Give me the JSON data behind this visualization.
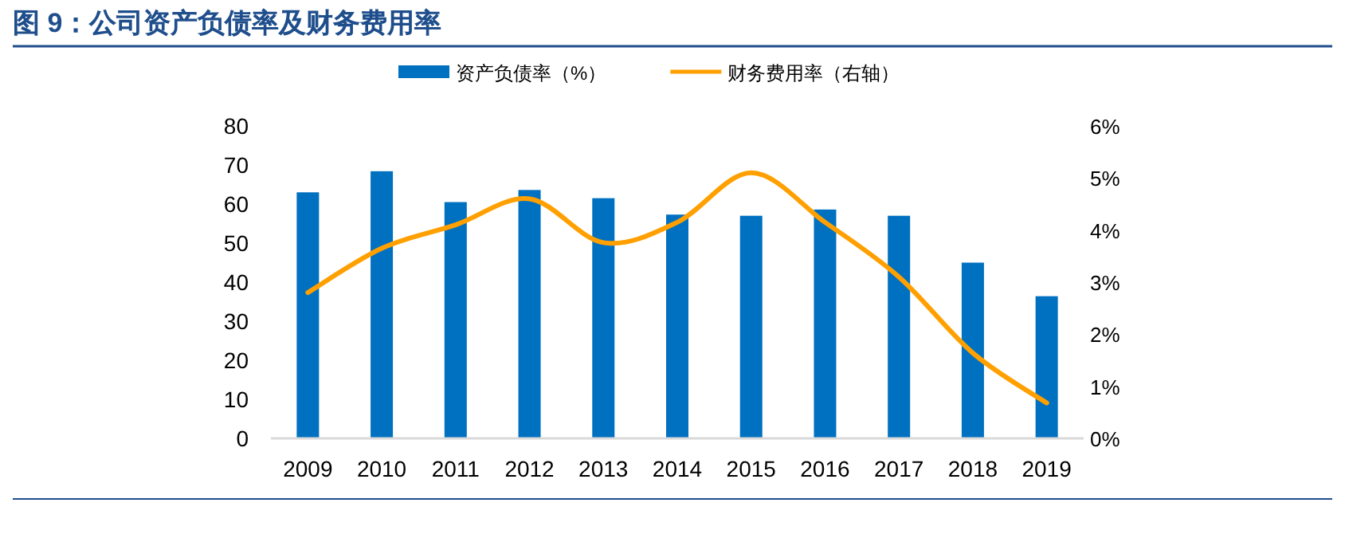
{
  "chart_data": {
    "type": "bar",
    "title": "图 9：公司资产负债率及财务费用率",
    "categories": [
      "2009",
      "2010",
      "2011",
      "2012",
      "2013",
      "2014",
      "2015",
      "2016",
      "2017",
      "2018",
      "2019"
    ],
    "series": [
      {
        "name": "资产负债率（%）",
        "color": "#0070c0",
        "values": [
          63,
          68.4,
          60.5,
          63.6,
          61.5,
          57.3,
          57,
          58.6,
          57,
          45,
          36.4
        ]
      },
      {
        "name": "财务费用率（右轴）",
        "type": "line",
        "axis": "y2",
        "color": "#ffa000",
        "values": [
          2.8,
          3.65,
          4.1,
          4.6,
          3.76,
          4.15,
          5.1,
          4.15,
          3.1,
          1.64,
          0.68
        ]
      }
    ],
    "ylim": [
      0,
      80
    ],
    "yticks": [
      0,
      10,
      20,
      30,
      40,
      50,
      60,
      70,
      80
    ],
    "y2lim": [
      0,
      6
    ],
    "y2ticks": [
      {
        "value": 0,
        "label": "0%"
      },
      {
        "value": 1,
        "label": "1%"
      },
      {
        "value": 2,
        "label": "2%"
      },
      {
        "value": 3,
        "label": "3%"
      },
      {
        "value": 4,
        "label": "4%"
      },
      {
        "value": 5,
        "label": "5%"
      },
      {
        "value": 6,
        "label": "6%"
      }
    ],
    "legend": "top",
    "grid": false
  }
}
